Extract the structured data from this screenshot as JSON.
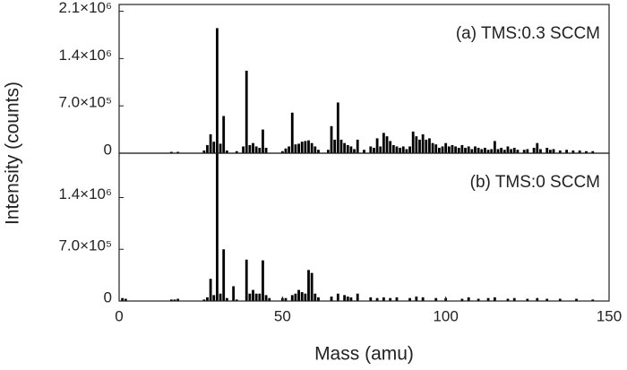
{
  "chart_data": [
    {
      "type": "bar",
      "annotation": "(a) TMS:0.3 SCCM",
      "ylabel": "Intensity (counts)",
      "color": "#000000",
      "xlim": [
        0,
        150
      ],
      "ylim": [
        0,
        2200000
      ],
      "yticks": [
        0,
        {
          "value": 700000,
          "label": "7.0×10⁵"
        },
        {
          "value": 1400000,
          "label": "1.4×10⁶"
        },
        {
          "value": 2100000,
          "label": "2.1×10⁶"
        }
      ],
      "x": [
        16,
        18,
        26,
        27,
        28,
        29,
        30,
        31,
        32,
        33,
        36,
        38,
        39,
        40,
        41,
        42,
        43,
        44,
        45,
        50,
        51,
        52,
        53,
        54,
        55,
        56,
        57,
        58,
        59,
        60,
        61,
        64,
        65,
        66,
        67,
        68,
        69,
        70,
        71,
        72,
        73,
        75,
        77,
        78,
        79,
        80,
        81,
        82,
        83,
        84,
        85,
        86,
        87,
        88,
        89,
        90,
        91,
        92,
        93,
        94,
        95,
        96,
        97,
        98,
        99,
        100,
        101,
        102,
        103,
        104,
        105,
        106,
        107,
        108,
        109,
        110,
        111,
        112,
        113,
        114,
        115,
        116,
        117,
        118,
        119,
        120,
        121,
        122,
        124,
        125,
        127,
        128,
        129,
        131,
        132,
        133,
        135,
        137,
        139,
        141,
        143,
        145
      ],
      "values": [
        20000,
        20000,
        40000,
        120000,
        280000,
        170000,
        1850000,
        140000,
        550000,
        40000,
        30000,
        100000,
        1220000,
        120000,
        150000,
        100000,
        80000,
        350000,
        80000,
        30000,
        70000,
        100000,
        600000,
        130000,
        140000,
        170000,
        180000,
        190000,
        150000,
        100000,
        50000,
        50000,
        400000,
        200000,
        750000,
        200000,
        150000,
        120000,
        100000,
        60000,
        200000,
        50000,
        100000,
        80000,
        220000,
        100000,
        300000,
        250000,
        180000,
        120000,
        100000,
        80000,
        100000,
        60000,
        100000,
        320000,
        250000,
        200000,
        280000,
        200000,
        220000,
        150000,
        130000,
        80000,
        100000,
        150000,
        100000,
        120000,
        100000,
        80000,
        120000,
        80000,
        100000,
        60000,
        100000,
        80000,
        60000,
        80000,
        50000,
        60000,
        180000,
        60000,
        80000,
        50000,
        100000,
        60000,
        80000,
        50000,
        50000,
        60000,
        80000,
        150000,
        60000,
        80000,
        50000,
        60000,
        40000,
        50000,
        40000,
        40000,
        30000,
        30000
      ]
    },
    {
      "type": "bar",
      "annotation": "(b) TMS:0 SCCM",
      "xlabel": "Mass (amu)",
      "color": "#000000",
      "xlim": [
        0,
        150
      ],
      "xticks": [
        0,
        50,
        100,
        150
      ],
      "ylim": [
        0,
        2000000
      ],
      "yticks": [
        0,
        {
          "value": 700000,
          "label": "7.0×10⁵"
        },
        {
          "value": 1400000,
          "label": "1.4×10⁶"
        }
      ],
      "x": [
        1,
        2,
        16,
        17,
        18,
        26,
        27,
        28,
        29,
        30,
        31,
        32,
        33,
        35,
        36,
        39,
        40,
        41,
        42,
        43,
        44,
        45,
        46,
        50,
        51,
        53,
        54,
        55,
        56,
        57,
        58,
        59,
        60,
        61,
        65,
        67,
        69,
        70,
        71,
        73,
        77,
        79,
        81,
        83,
        85,
        89,
        91,
        93,
        97,
        100,
        105,
        107,
        110,
        113,
        115,
        119,
        121,
        125,
        128,
        131,
        135,
        140,
        145
      ],
      "values": [
        40000,
        30000,
        20000,
        20000,
        30000,
        20000,
        50000,
        300000,
        80000,
        2000000,
        100000,
        700000,
        40000,
        200000,
        20000,
        560000,
        100000,
        150000,
        100000,
        100000,
        550000,
        80000,
        40000,
        40000,
        40000,
        80000,
        100000,
        150000,
        120000,
        100000,
        420000,
        380000,
        100000,
        50000,
        60000,
        100000,
        80000,
        60000,
        50000,
        100000,
        50000,
        40000,
        50000,
        40000,
        50000,
        40000,
        60000,
        50000,
        40000,
        40000,
        30000,
        50000,
        30000,
        40000,
        50000,
        30000,
        40000,
        30000,
        40000,
        30000,
        30000,
        30000,
        20000
      ]
    }
  ]
}
